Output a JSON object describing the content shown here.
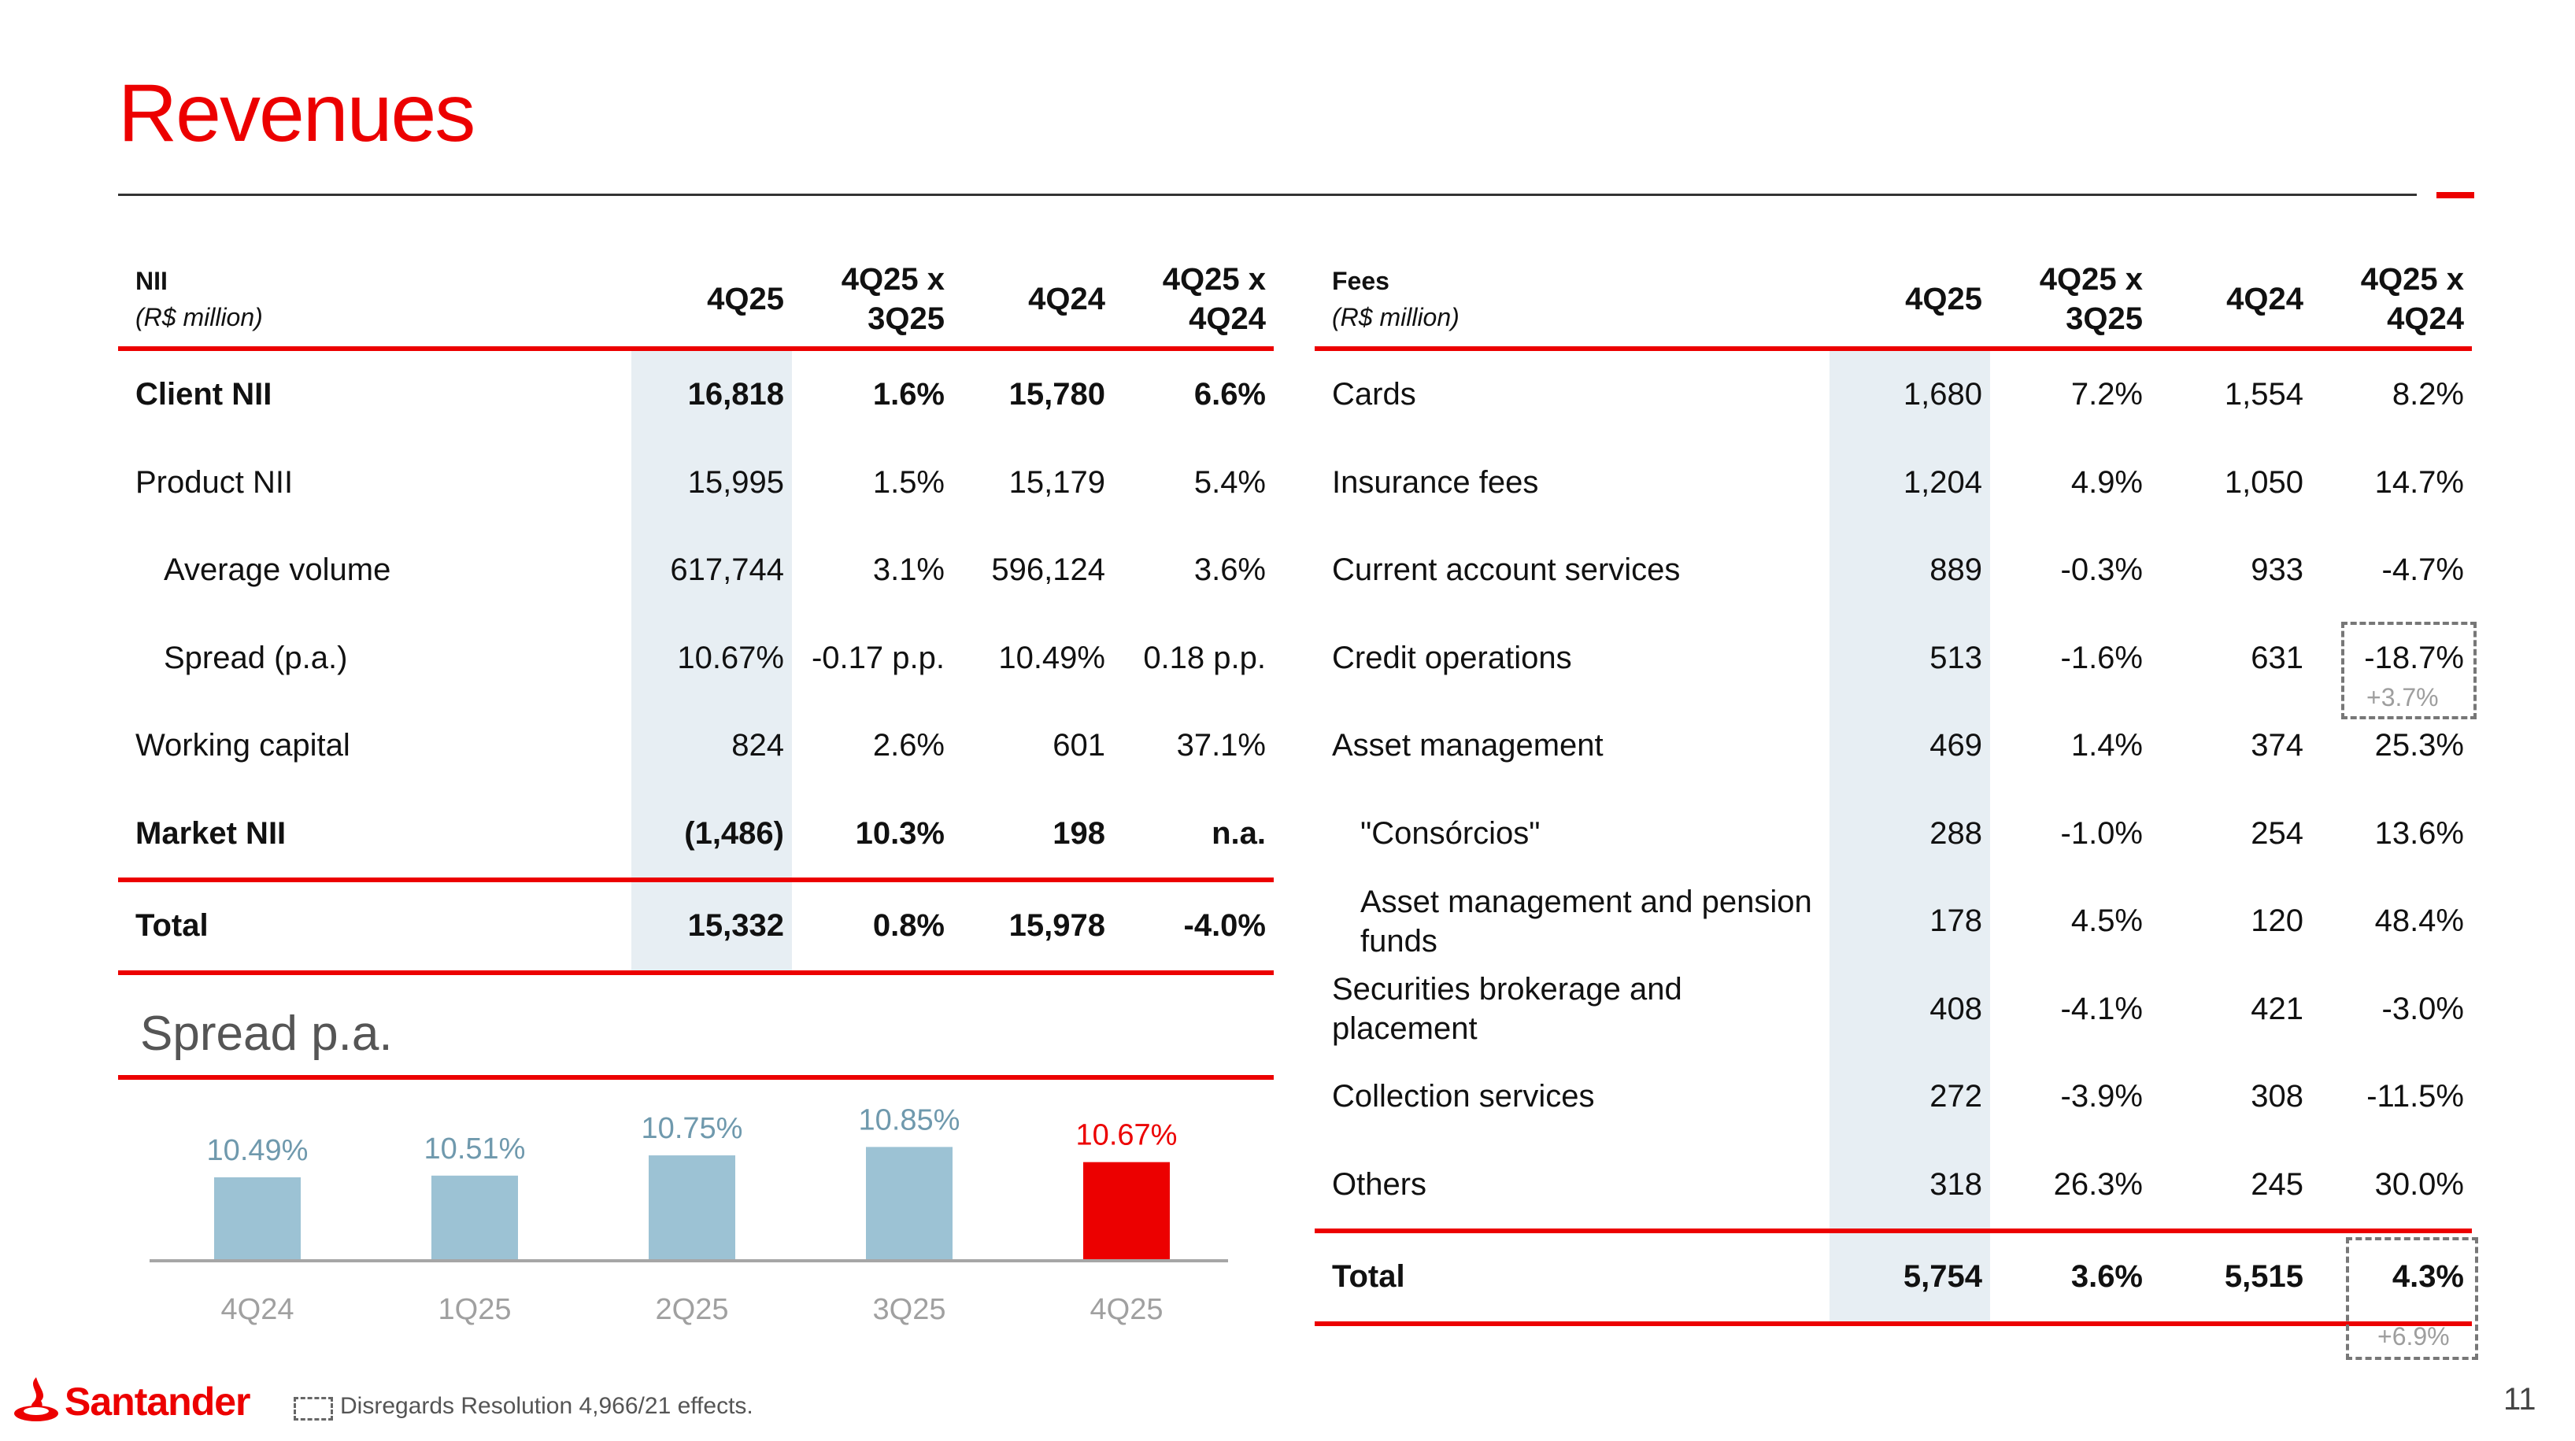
{
  "title": "Revenues",
  "nii_table": {
    "header_label": "NII",
    "header_sub": "(R$ million)",
    "columns": [
      "4Q25",
      "4Q25 x",
      "3Q25",
      "4Q24",
      "4Q25 x",
      "4Q24"
    ],
    "rows": [
      {
        "label": "Client NII",
        "v1": "16,818",
        "v2": "1.6%",
        "v3": "15,780",
        "v4": "6.6%"
      },
      {
        "label": "Product NII",
        "v1": "15,995",
        "v2": "1.5%",
        "v3": "15,179",
        "v4": "5.4%"
      },
      {
        "label": "Average volume",
        "v1": "617,744",
        "v2": "3.1%",
        "v3": "596,124",
        "v4": "3.6%"
      },
      {
        "label": "Spread (p.a.)",
        "v1": "10.67%",
        "v2": "-0.17 p.p.",
        "v3": "10.49%",
        "v4": "0.18 p.p."
      },
      {
        "label": "Working capital",
        "v1": "824",
        "v2": "2.6%",
        "v3": "601",
        "v4": "37.1%"
      },
      {
        "label": "Market NII",
        "v1": "(1,486)",
        "v2": "10.3%",
        "v3": "198",
        "v4": "n.a."
      },
      {
        "label": "Total",
        "v1": "15,332",
        "v2": "0.8%",
        "v3": "15,978",
        "v4": "-4.0%"
      }
    ]
  },
  "fees_table": {
    "header_label": "Fees",
    "header_sub": "(R$ million)",
    "columns": [
      "4Q25",
      "4Q25 x",
      "3Q25",
      "4Q24",
      "4Q25 x",
      "4Q24"
    ],
    "rows": [
      {
        "label": "Cards",
        "v1": "1,680",
        "v2": "7.2%",
        "v3": "1,554",
        "v4": "8.2%"
      },
      {
        "label": "Insurance fees",
        "v1": "1,204",
        "v2": "4.9%",
        "v3": "1,050",
        "v4": "14.7%"
      },
      {
        "label": "Current account services",
        "v1": "889",
        "v2": "-0.3%",
        "v3": "933",
        "v4": "-4.7%"
      },
      {
        "label": "Credit operations",
        "v1": "513",
        "v2": "-1.6%",
        "v3": "631",
        "v4": "-18.7%"
      },
      {
        "label": "Asset management",
        "v1": "469",
        "v2": "1.4%",
        "v3": "374",
        "v4": "25.3%"
      },
      {
        "label": "\"Consórcios\"",
        "v1": "288",
        "v2": "-1.0%",
        "v3": "254",
        "v4": "13.6%"
      },
      {
        "label": "Asset management and pension funds",
        "v1": "178",
        "v2": "4.5%",
        "v3": "120",
        "v4": "48.4%"
      },
      {
        "label": "Securities brokerage and placement",
        "v1": "408",
        "v2": "-4.1%",
        "v3": "421",
        "v4": "-3.0%"
      },
      {
        "label": "Collection services",
        "v1": "272",
        "v2": "-3.9%",
        "v3": "308",
        "v4": "-11.5%"
      },
      {
        "label": "Others",
        "v1": "318",
        "v2": "26.3%",
        "v3": "245",
        "v4": "30.0%"
      },
      {
        "label": "Total",
        "v1": "5,754",
        "v2": "3.6%",
        "v3": "5,515",
        "v4": "4.3%"
      }
    ],
    "notes": {
      "credit_operations": "+3.7%",
      "total": "+6.9%"
    }
  },
  "spread_title": "Spread p.a.",
  "chart_data": {
    "type": "bar",
    "title": "Spread p.a.",
    "categories": [
      "4Q24",
      "1Q25",
      "2Q25",
      "3Q25",
      "4Q25"
    ],
    "values": [
      10.49,
      10.51,
      10.75,
      10.85,
      10.67
    ],
    "labels": [
      "10.49%",
      "10.51%",
      "10.75%",
      "10.85%",
      "10.67%"
    ],
    "ylim": [
      9.5,
      10.9
    ],
    "colors": {
      "default": "#9cc2d4",
      "highlight": "#ec0000"
    },
    "highlight_index": 4
  },
  "footer": {
    "brand": "Santander",
    "note": "Disregards Resolution 4,966/21 effects.",
    "page_number": "11"
  },
  "colors": {
    "accent": "#ec0000",
    "shade": "#e7eef3",
    "bar": "#9cc2d4"
  }
}
